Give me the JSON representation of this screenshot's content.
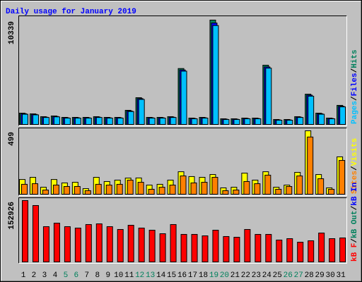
{
  "chart_data": [
    {
      "type": "bar",
      "title": "Daily usage for January 2019",
      "separator": "/",
      "ylim": [
        0,
        10339
      ],
      "yticks": [
        10339
      ],
      "series": [
        {
          "name": "Hits",
          "color": "#00805c",
          "values": [
            1120,
            1050,
            770,
            840,
            700,
            700,
            700,
            770,
            700,
            700,
            1400,
            2650,
            700,
            700,
            770,
            5540,
            630,
            700,
            10339,
            560,
            560,
            630,
            630,
            5870,
            490,
            490,
            770,
            3000,
            1120,
            630,
            1890
          ]
        },
        {
          "name": "Files",
          "color": "#0000ff",
          "values": [
            1060,
            1000,
            720,
            790,
            660,
            660,
            660,
            720,
            660,
            660,
            1330,
            2560,
            660,
            660,
            720,
            5400,
            590,
            660,
            10050,
            520,
            520,
            590,
            590,
            5700,
            450,
            450,
            720,
            2900,
            1060,
            590,
            1800
          ]
        },
        {
          "name": "Pages",
          "color": "#00c0ff",
          "values": [
            1010,
            950,
            690,
            750,
            630,
            630,
            630,
            690,
            630,
            630,
            1280,
            2480,
            630,
            630,
            690,
            5280,
            560,
            630,
            9800,
            490,
            490,
            560,
            560,
            5580,
            420,
            420,
            690,
            2800,
            1010,
            560,
            1740
          ]
        }
      ]
    },
    {
      "type": "bar",
      "ylim": [
        0,
        499
      ],
      "yticks": [
        499
      ],
      "series": [
        {
          "name": "Visits",
          "color": "#ffff00",
          "values": [
            116,
            133,
            55,
            116,
            89,
            94,
            44,
            133,
            100,
            111,
            127,
            128,
            72,
            78,
            111,
            177,
            139,
            133,
            155,
            50,
            55,
            166,
            111,
            177,
            55,
            72,
            172,
            499,
            155,
            50,
            294
          ]
        },
        {
          "name": "Sites",
          "color": "#ff8000",
          "values": [
            78,
            83,
            33,
            72,
            61,
            61,
            28,
            78,
            72,
            78,
            111,
            94,
            39,
            55,
            72,
            144,
            89,
            94,
            133,
            28,
            33,
            100,
            83,
            150,
            39,
            61,
            144,
            450,
            122,
            39,
            266
          ]
        }
      ]
    },
    {
      "type": "bar",
      "ylim": [
        0,
        152926
      ],
      "yticks": [
        152926
      ],
      "categories": [
        "1",
        "2",
        "3",
        "4",
        "5",
        "6",
        "7",
        "8",
        "9",
        "10",
        "11",
        "12",
        "13",
        "14",
        "15",
        "16",
        "17",
        "18",
        "19",
        "20",
        "21",
        "22",
        "23",
        "24",
        "25",
        "26",
        "27",
        "28",
        "29",
        "30",
        "31"
      ],
      "category_colors": [
        "#000000",
        "#000000",
        "#000000",
        "#000000",
        "#00805c",
        "#00805c",
        "#000000",
        "#000000",
        "#000000",
        "#000000",
        "#000000",
        "#00805c",
        "#00805c",
        "#000000",
        "#000000",
        "#000000",
        "#000000",
        "#000000",
        "#00805c",
        "#00805c",
        "#000000",
        "#000000",
        "#000000",
        "#000000",
        "#000000",
        "#00805c",
        "#00805c",
        "#000000",
        "#000000",
        "#000000",
        "#000000"
      ],
      "series": [
        {
          "name": "kB In",
          "color": "#0000ff",
          "values": [
            null,
            null,
            null,
            null,
            null,
            null,
            null,
            null,
            null,
            null,
            null,
            null,
            null,
            null,
            null,
            null,
            null,
            null,
            null,
            null,
            null,
            null,
            null,
            null,
            null,
            null,
            null,
            null,
            null,
            null,
            null
          ]
        },
        {
          "name": "kB Out",
          "color": "#00805c",
          "values": [
            null,
            null,
            null,
            null,
            null,
            null,
            null,
            null,
            null,
            null,
            null,
            null,
            null,
            null,
            null,
            null,
            null,
            null,
            null,
            null,
            null,
            null,
            null,
            null,
            null,
            null,
            null,
            null,
            null,
            null,
            null
          ]
        },
        {
          "name": "kB F",
          "color": "#ff0000",
          "values": [
            152926,
            140600,
            87900,
            96700,
            87900,
            84400,
            93200,
            94900,
            87900,
            80900,
            91400,
            84400,
            79100,
            70300,
            93200,
            68600,
            68600,
            65000,
            79100,
            63300,
            61500,
            80900,
            68600,
            68600,
            54500,
            58000,
            49200,
            52700,
            72000,
            58000,
            59800
          ]
        }
      ]
    }
  ]
}
